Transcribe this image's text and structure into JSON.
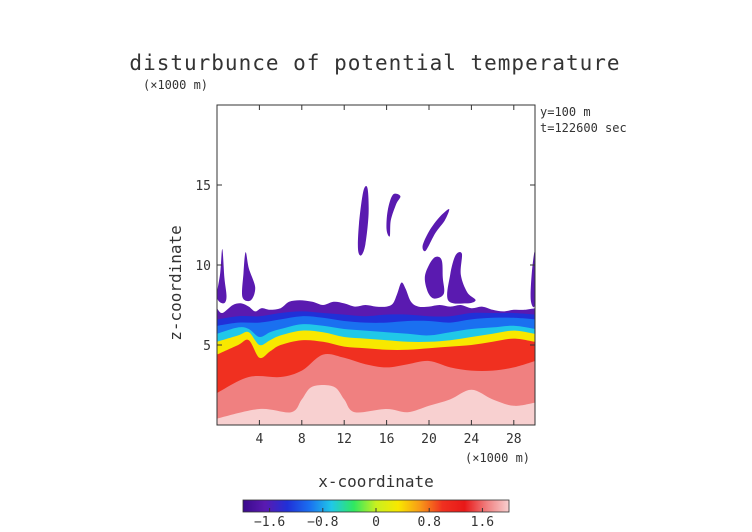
{
  "chart_data": {
    "type": "heatmap",
    "title": "disturbunce of potential temperature",
    "y_unit": "(×1000 m)",
    "x_unit": "(×1000 m)",
    "xlabel": "x-coordinate",
    "ylabel": "z-coordinate",
    "annotations": [
      "y=100 m",
      "t=122600 sec"
    ],
    "xlim": [
      0,
      30
    ],
    "ylim": [
      0,
      20
    ],
    "x_ticks": [
      4,
      8,
      12,
      16,
      20,
      24,
      28
    ],
    "x_tick_labels": [
      "4",
      "8",
      "12",
      "16",
      "20",
      "24",
      "28"
    ],
    "y_ticks": [
      5,
      10,
      15
    ],
    "y_tick_labels": [
      "5",
      "10",
      "15"
    ],
    "colorbar": {
      "range": [
        -2.0,
        2.0
      ],
      "ticks": [
        -1.6,
        -0.8,
        0,
        0.8,
        1.6
      ],
      "tick_labels": [
        "−1.6",
        "−0.8",
        "0",
        "0.8",
        "1.6"
      ],
      "colors": [
        "#3a0a8c",
        "#5a1ab0",
        "#2030d8",
        "#1a70f0",
        "#20c8e8",
        "#30e860",
        "#c8f020",
        "#f8e800",
        "#f89818",
        "#f03020",
        "#e81818",
        "#f08080",
        "#f8d0d0"
      ]
    },
    "field_layers": [
      {
        "value": 2.0,
        "color": "#fde0e0",
        "boundary": [
          [
            0,
            0.4
          ],
          [
            4,
            1.0
          ],
          [
            7,
            0.8
          ],
          [
            8,
            1.6
          ],
          [
            9,
            2.4
          ],
          [
            11,
            2.4
          ],
          [
            12,
            1.6
          ],
          [
            13,
            0.8
          ],
          [
            16,
            1.0
          ],
          [
            18,
            0.8
          ],
          [
            20,
            1.2
          ],
          [
            22,
            1.6
          ],
          [
            24,
            2.2
          ],
          [
            26,
            1.6
          ],
          [
            28,
            1.2
          ],
          [
            30,
            1.4
          ]
        ]
      },
      {
        "value": 1.5,
        "color": "#f03020",
        "boundary": [
          [
            0,
            2.0
          ],
          [
            3,
            3.0
          ],
          [
            6,
            3.0
          ],
          [
            8,
            3.4
          ],
          [
            10,
            4.4
          ],
          [
            12,
            4.2
          ],
          [
            14,
            3.8
          ],
          [
            16,
            3.6
          ],
          [
            18,
            3.8
          ],
          [
            20,
            4.0
          ],
          [
            22,
            3.6
          ],
          [
            24,
            3.4
          ],
          [
            26,
            3.4
          ],
          [
            28,
            3.6
          ],
          [
            30,
            4.0
          ]
        ]
      },
      {
        "value": 1.0,
        "color": "#f89818",
        "boundary": [
          [
            0,
            4.4
          ],
          [
            2,
            5.0
          ],
          [
            3,
            5.3
          ],
          [
            4,
            4.2
          ],
          [
            5,
            4.6
          ],
          [
            6,
            5.0
          ],
          [
            8,
            5.3
          ],
          [
            10,
            5.2
          ],
          [
            12,
            4.9
          ],
          [
            14,
            4.8
          ],
          [
            16,
            4.7
          ],
          [
            18,
            4.7
          ],
          [
            20,
            4.8
          ],
          [
            22,
            4.9
          ],
          [
            24,
            5.0
          ],
          [
            26,
            5.2
          ],
          [
            28,
            5.4
          ],
          [
            30,
            5.2
          ]
        ]
      },
      {
        "value": 0.2,
        "color": "#30e860",
        "boundary": [
          [
            0,
            5.2
          ],
          [
            2,
            5.6
          ],
          [
            3,
            5.8
          ],
          [
            4,
            5.0
          ],
          [
            5,
            5.3
          ],
          [
            6,
            5.6
          ],
          [
            8,
            5.9
          ],
          [
            10,
            5.8
          ],
          [
            12,
            5.5
          ],
          [
            14,
            5.4
          ],
          [
            16,
            5.3
          ],
          [
            18,
            5.2
          ],
          [
            20,
            5.2
          ],
          [
            22,
            5.3
          ],
          [
            24,
            5.5
          ],
          [
            26,
            5.7
          ],
          [
            28,
            5.9
          ],
          [
            30,
            5.7
          ]
        ]
      },
      {
        "value": -0.6,
        "color": "#20c8e8",
        "boundary": [
          [
            0,
            5.7
          ],
          [
            2,
            6.1
          ],
          [
            3,
            6.0
          ],
          [
            4,
            5.5
          ],
          [
            5,
            5.8
          ],
          [
            6,
            6.0
          ],
          [
            8,
            6.3
          ],
          [
            10,
            6.2
          ],
          [
            12,
            6.0
          ],
          [
            14,
            5.9
          ],
          [
            16,
            5.8
          ],
          [
            18,
            5.7
          ],
          [
            20,
            5.6
          ],
          [
            22,
            5.8
          ],
          [
            24,
            6.0
          ],
          [
            26,
            6.1
          ],
          [
            28,
            6.2
          ],
          [
            30,
            6.0
          ]
        ]
      },
      {
        "value": -1.0,
        "color": "#1a70f0",
        "boundary": [
          [
            0,
            6.2
          ],
          [
            2,
            6.4
          ],
          [
            4,
            6.4
          ],
          [
            6,
            6.6
          ],
          [
            8,
            6.8
          ],
          [
            10,
            6.7
          ],
          [
            12,
            6.5
          ],
          [
            14,
            6.4
          ],
          [
            16,
            6.4
          ],
          [
            18,
            6.5
          ],
          [
            20,
            6.5
          ],
          [
            22,
            6.4
          ],
          [
            24,
            6.6
          ],
          [
            26,
            6.7
          ],
          [
            28,
            6.7
          ],
          [
            30,
            6.6
          ]
        ]
      },
      {
        "value": -1.4,
        "color": "#2030d8",
        "boundary": [
          [
            0,
            6.6
          ],
          [
            2,
            6.8
          ],
          [
            4,
            6.8
          ],
          [
            6,
            7.0
          ],
          [
            8,
            7.1
          ],
          [
            10,
            7.0
          ],
          [
            12,
            6.9
          ],
          [
            14,
            6.8
          ],
          [
            16,
            6.9
          ],
          [
            18,
            6.9
          ],
          [
            20,
            6.8
          ],
          [
            22,
            6.8
          ],
          [
            24,
            7.0
          ],
          [
            26,
            7.0
          ],
          [
            28,
            7.0
          ],
          [
            30,
            6.9
          ]
        ]
      },
      {
        "value": -1.8,
        "color": "#5a1ab0",
        "boundary": [
          [
            0,
            7.3
          ],
          [
            0.5,
            7.0
          ],
          [
            1.5,
            7.5
          ],
          [
            2.3,
            7.6
          ],
          [
            3,
            7.4
          ],
          [
            3.6,
            7.1
          ],
          [
            4.2,
            7.3
          ],
          [
            5,
            7.2
          ],
          [
            6,
            7.3
          ],
          [
            6.8,
            7.7
          ],
          [
            7.8,
            7.8
          ],
          [
            9,
            7.7
          ],
          [
            10,
            7.5
          ],
          [
            11,
            7.7
          ],
          [
            12,
            7.6
          ],
          [
            13,
            7.4
          ],
          [
            14,
            7.5
          ],
          [
            15,
            7.4
          ],
          [
            16,
            7.4
          ],
          [
            16.6,
            7.6
          ],
          [
            17,
            8.2
          ],
          [
            17.4,
            8.9
          ],
          [
            17.8,
            8.5
          ],
          [
            18.3,
            7.7
          ],
          [
            19,
            7.4
          ],
          [
            20,
            7.4
          ],
          [
            21,
            7.5
          ],
          [
            22,
            7.4
          ],
          [
            23,
            7.5
          ],
          [
            24,
            7.3
          ],
          [
            25,
            7.4
          ],
          [
            26,
            7.2
          ],
          [
            27,
            7.1
          ],
          [
            28,
            7.2
          ],
          [
            29,
            7.2
          ],
          [
            30,
            7.3
          ]
        ]
      }
    ],
    "blobs": [
      {
        "value": -1.8,
        "points": [
          [
            0,
            8
          ],
          [
            0.3,
            9.5
          ],
          [
            0.5,
            11.0
          ],
          [
            0.7,
            9.2
          ],
          [
            0.9,
            8.0
          ],
          [
            0.6,
            7.6
          ]
        ]
      },
      {
        "value": -1.8,
        "points": [
          [
            2.4,
            8.0
          ],
          [
            2.5,
            9.5
          ],
          [
            2.7,
            10.8
          ],
          [
            3.0,
            9.8
          ],
          [
            3.6,
            8.6
          ],
          [
            3.2,
            7.8
          ]
        ]
      },
      {
        "value": -1.8,
        "points": [
          [
            13.3,
            11.0
          ],
          [
            13.4,
            12.6
          ],
          [
            13.8,
            14.6
          ],
          [
            14.2,
            14.8
          ],
          [
            14.3,
            13.2
          ],
          [
            14.0,
            11.3
          ],
          [
            13.6,
            10.6
          ]
        ]
      },
      {
        "value": -1.8,
        "points": [
          [
            16.0,
            12.2
          ],
          [
            16.1,
            13.4
          ],
          [
            16.6,
            14.4
          ],
          [
            17.3,
            14.3
          ],
          [
            16.9,
            13.8
          ],
          [
            16.4,
            12.8
          ],
          [
            16.3,
            11.8
          ]
        ]
      },
      {
        "value": -1.8,
        "points": [
          [
            19.4,
            11.2
          ],
          [
            20.0,
            12.1
          ],
          [
            21.0,
            13.0
          ],
          [
            21.9,
            13.5
          ],
          [
            21.5,
            12.8
          ],
          [
            20.6,
            12.0
          ],
          [
            19.7,
            10.9
          ]
        ]
      },
      {
        "value": -1.8,
        "points": [
          [
            19.6,
            9.2
          ],
          [
            20.0,
            10.0
          ],
          [
            20.6,
            10.5
          ],
          [
            21.2,
            10.3
          ],
          [
            21.3,
            9.2
          ],
          [
            21.4,
            8.2
          ],
          [
            20.5,
            7.9
          ],
          [
            19.9,
            8.3
          ]
        ]
      },
      {
        "value": -1.8,
        "points": [
          [
            21.8,
            7.8
          ],
          [
            22.0,
            9.4
          ],
          [
            22.5,
            10.6
          ],
          [
            23.1,
            10.7
          ],
          [
            23.0,
            9.4
          ],
          [
            23.6,
            8.3
          ],
          [
            24.4,
            7.8
          ],
          [
            23.5,
            7.6
          ]
        ]
      },
      {
        "value": -1.8,
        "points": [
          [
            29.6,
            7.8
          ],
          [
            29.7,
            9.5
          ],
          [
            30,
            10.8
          ],
          [
            30,
            7.6
          ]
        ]
      }
    ]
  }
}
